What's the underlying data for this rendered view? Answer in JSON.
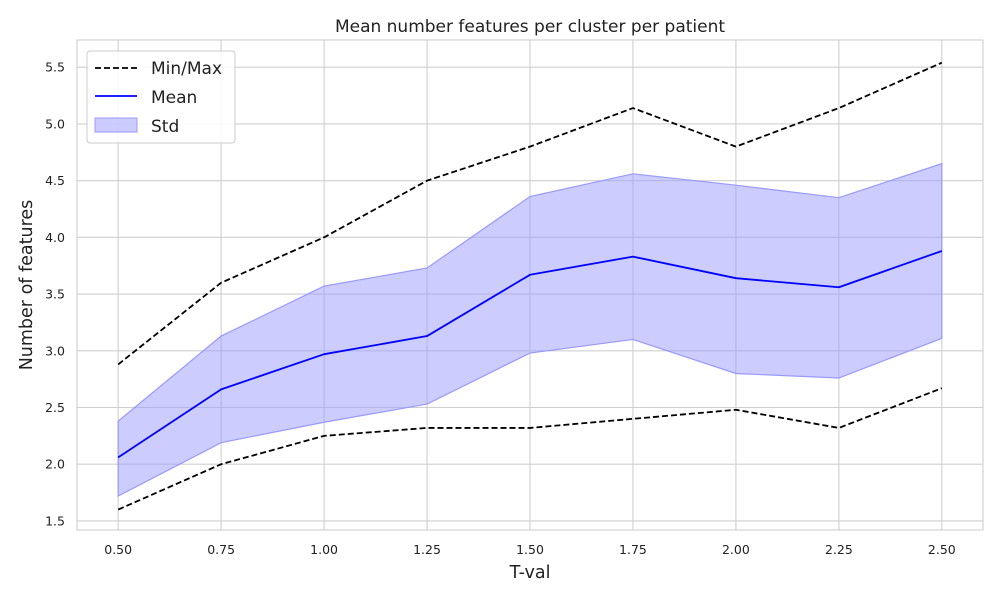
{
  "chart_data": {
    "type": "line",
    "title": "Mean number features per cluster per patient",
    "xlabel": "T-val",
    "ylabel": "Number of features",
    "x": [
      0.5,
      0.75,
      1.0,
      1.25,
      1.5,
      1.75,
      2.0,
      2.25,
      2.5
    ],
    "x_tick_labels": [
      "0.50",
      "0.75",
      "1.00",
      "1.25",
      "1.50",
      "1.75",
      "2.00",
      "2.25",
      "2.50"
    ],
    "y_ticks": [
      1.5,
      2.0,
      2.5,
      3.0,
      3.5,
      4.0,
      4.5,
      5.0,
      5.5
    ],
    "y_tick_labels": [
      "1.5",
      "2.0",
      "2.5",
      "3.0",
      "3.5",
      "4.0",
      "4.5",
      "5.0",
      "5.5"
    ],
    "xlim": [
      0.4,
      2.6
    ],
    "ylim": [
      1.42,
      5.74
    ],
    "grid": true,
    "legend_position": "top-left",
    "series": [
      {
        "name": "Min/Max",
        "style": "dashed",
        "color": "#000000",
        "kind": "max",
        "values": [
          2.88,
          3.6,
          4.0,
          4.5,
          4.8,
          5.14,
          4.8,
          5.14,
          5.54
        ]
      },
      {
        "name": "Min/Max",
        "style": "dashed",
        "color": "#000000",
        "kind": "min",
        "values": [
          1.6,
          2.0,
          2.25,
          2.32,
          2.32,
          2.4,
          2.48,
          2.32,
          2.67
        ]
      },
      {
        "name": "Mean",
        "style": "solid",
        "color": "#0000ff",
        "kind": "mean",
        "values": [
          2.06,
          2.66,
          2.97,
          3.13,
          3.67,
          3.83,
          3.64,
          3.56,
          3.88
        ]
      }
    ],
    "std_band": {
      "name": "Std",
      "color": "#9999ff",
      "upper": [
        2.38,
        3.13,
        3.57,
        3.73,
        4.36,
        4.56,
        4.46,
        4.35,
        4.65
      ],
      "lower": [
        1.72,
        2.19,
        2.37,
        2.53,
        2.98,
        3.1,
        2.8,
        2.76,
        3.11
      ]
    },
    "legend": [
      {
        "label": "Min/Max",
        "kind": "dashed-line",
        "color": "#000000"
      },
      {
        "label": "Mean",
        "kind": "solid-line",
        "color": "#0000ff"
      },
      {
        "label": "Std",
        "kind": "patch",
        "color": "#9999ff"
      }
    ]
  }
}
